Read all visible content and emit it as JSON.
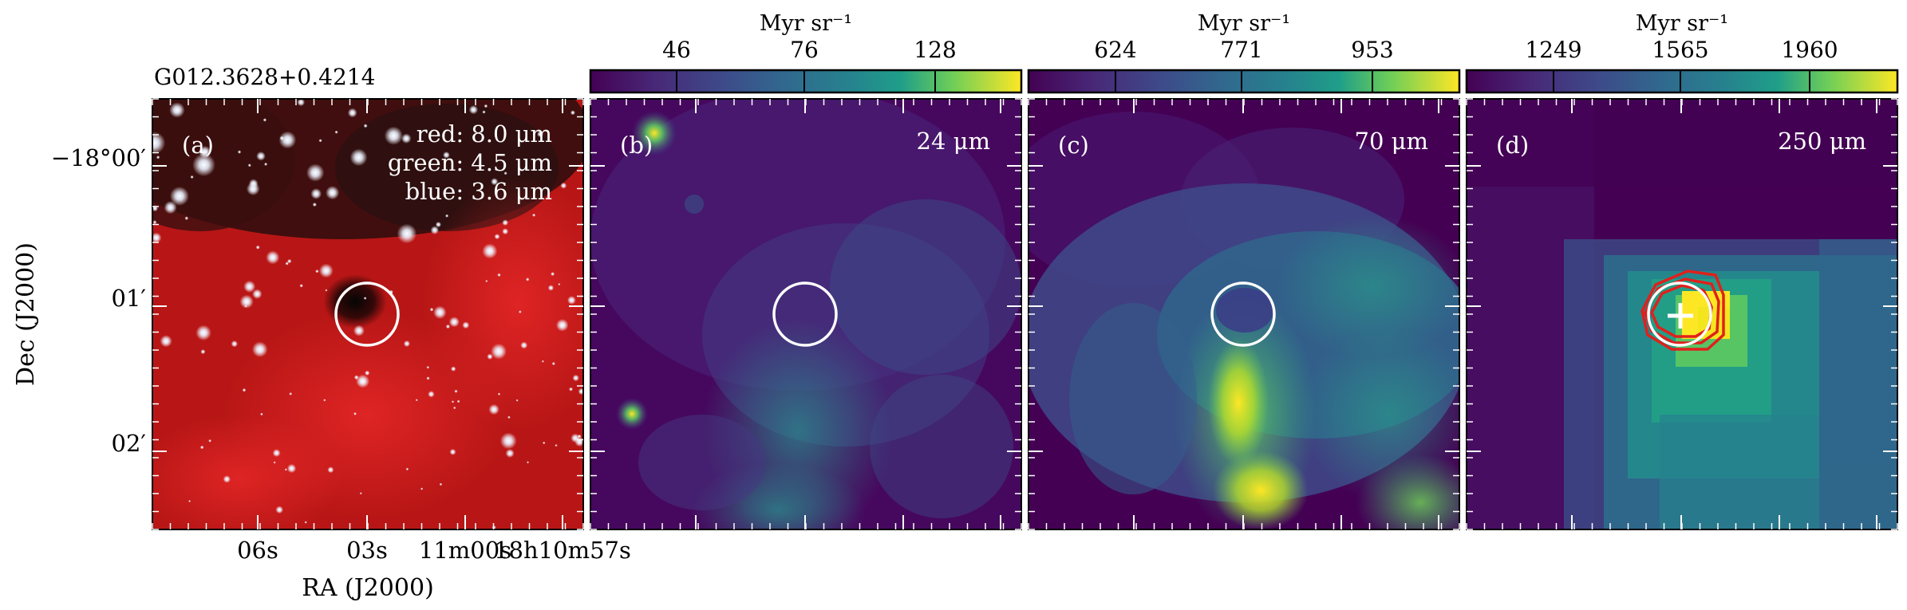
{
  "figure": {
    "source_name": "G012.3628+0.4214",
    "xlabel": "RA (J2000)",
    "ylabel": "Dec (J2000)",
    "ra_ticks": [
      "06s",
      "03s",
      "11m00s",
      "18h10m57s"
    ],
    "dec_ticks": [
      "−18°00′",
      "01′",
      "02′"
    ]
  },
  "panels": [
    {
      "id": "a",
      "letter": "(a)",
      "legend": [
        "red: 8.0 μm",
        "green: 4.5 μm",
        "blue: 3.6 μm"
      ]
    },
    {
      "id": "b",
      "letter": "(b)",
      "band": "24 μm",
      "colorbar": {
        "unit": "Myr sr⁻¹",
        "ticks": [
          "46",
          "76",
          "128"
        ],
        "scale": "log"
      }
    },
    {
      "id": "c",
      "letter": "(c)",
      "band": "70 μm",
      "colorbar": {
        "unit": "Myr sr⁻¹",
        "ticks": [
          "624",
          "771",
          "953"
        ],
        "scale": "log"
      }
    },
    {
      "id": "d",
      "letter": "(d)",
      "band": "250 μm",
      "colorbar": {
        "unit": "Myr sr⁻¹",
        "ticks": [
          "1249",
          "1565",
          "1960"
        ],
        "scale": "log"
      }
    }
  ],
  "colors": {
    "viridis_low": "#440154",
    "viridis_mid": "#21918c",
    "viridis_high": "#fde725",
    "rgb_background": "#c01818",
    "aperture": "#ffffff",
    "contour": "#e0201c"
  }
}
